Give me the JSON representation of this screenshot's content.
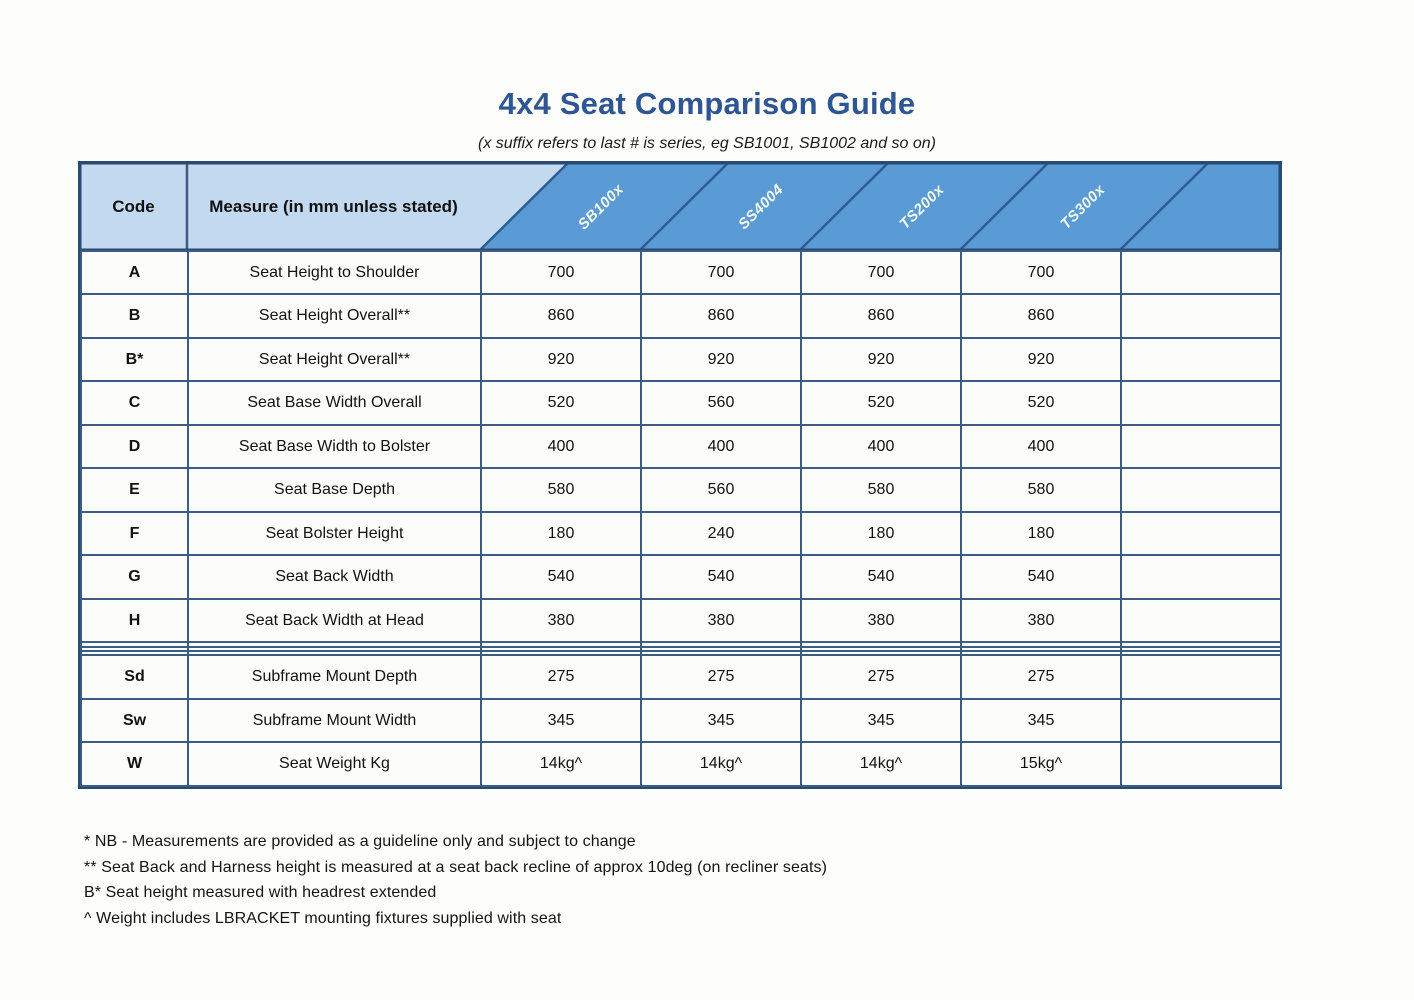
{
  "title": "4x4 Seat Comparison Guide",
  "subtitle": "(x suffix refers to last # is series, eg SB1001, SB1002 and so on)",
  "colors": {
    "title_blue": "#2e5693",
    "band_blue": "#5b9bd5",
    "light_blue": "#c2d9ef",
    "cell_border": "#3b5c85",
    "diagonal_line": "#2e5c94",
    "outer_border": "#2b4a70"
  },
  "table": {
    "code_header": "Code",
    "measure_header": "Measure (in mm unless stated)",
    "series_headers": [
      "SB100x",
      "SS4004",
      "TS200x",
      "TS300x"
    ],
    "rows": [
      {
        "code": "A",
        "measure": "Seat Height to Shoulder",
        "values": [
          "700",
          "700",
          "700",
          "700",
          ""
        ]
      },
      {
        "code": "B",
        "measure": "Seat Height Overall**",
        "values": [
          "860",
          "860",
          "860",
          "860",
          ""
        ]
      },
      {
        "code": "B*",
        "measure": "Seat Height Overall**",
        "values": [
          "920",
          "920",
          "920",
          "920",
          ""
        ]
      },
      {
        "code": "C",
        "measure": "Seat Base Width Overall",
        "values": [
          "520",
          "560",
          "520",
          "520",
          ""
        ]
      },
      {
        "code": "D",
        "measure": "Seat Base Width to Bolster",
        "values": [
          "400",
          "400",
          "400",
          "400",
          ""
        ]
      },
      {
        "code": "E",
        "measure": "Seat Base Depth",
        "values": [
          "580",
          "560",
          "580",
          "580",
          ""
        ]
      },
      {
        "code": "F",
        "measure": "Seat Bolster Height",
        "values": [
          "180",
          "240",
          "180",
          "180",
          ""
        ]
      },
      {
        "code": "G",
        "measure": "Seat Back Width",
        "values": [
          "540",
          "540",
          "540",
          "540",
          ""
        ]
      },
      {
        "code": "H",
        "measure": "Seat Back Width at Head",
        "values": [
          "380",
          "380",
          "380",
          "380",
          ""
        ]
      },
      {
        "code": "",
        "measure": "",
        "values": [
          "",
          "",
          "",
          "",
          ""
        ]
      },
      {
        "code": "",
        "measure": "",
        "values": [
          "",
          "",
          "",
          "",
          ""
        ]
      },
      {
        "code": "",
        "measure": "",
        "values": [
          "",
          "",
          "",
          "",
          ""
        ]
      },
      {
        "code": "Sd",
        "measure": "Subframe Mount Depth",
        "values": [
          "275",
          "275",
          "275",
          "275",
          ""
        ]
      },
      {
        "code": "Sw",
        "measure": "Subframe Mount Width",
        "values": [
          "345",
          "345",
          "345",
          "345",
          ""
        ]
      },
      {
        "code": "W",
        "measure": "Seat Weight Kg",
        "values": [
          "14kg^",
          "14kg^",
          "14kg^",
          "15kg^",
          ""
        ]
      }
    ]
  },
  "footnotes": [
    "* NB - Measurements are provided as a guideline only and subject to change",
    "** Seat Back and Harness height is measured at a seat back recline of approx 10deg (on recliner seats)",
    "B* Seat height measured with headrest extended",
    "^ Weight includes LBRACKET mounting fixtures supplied with seat"
  ]
}
